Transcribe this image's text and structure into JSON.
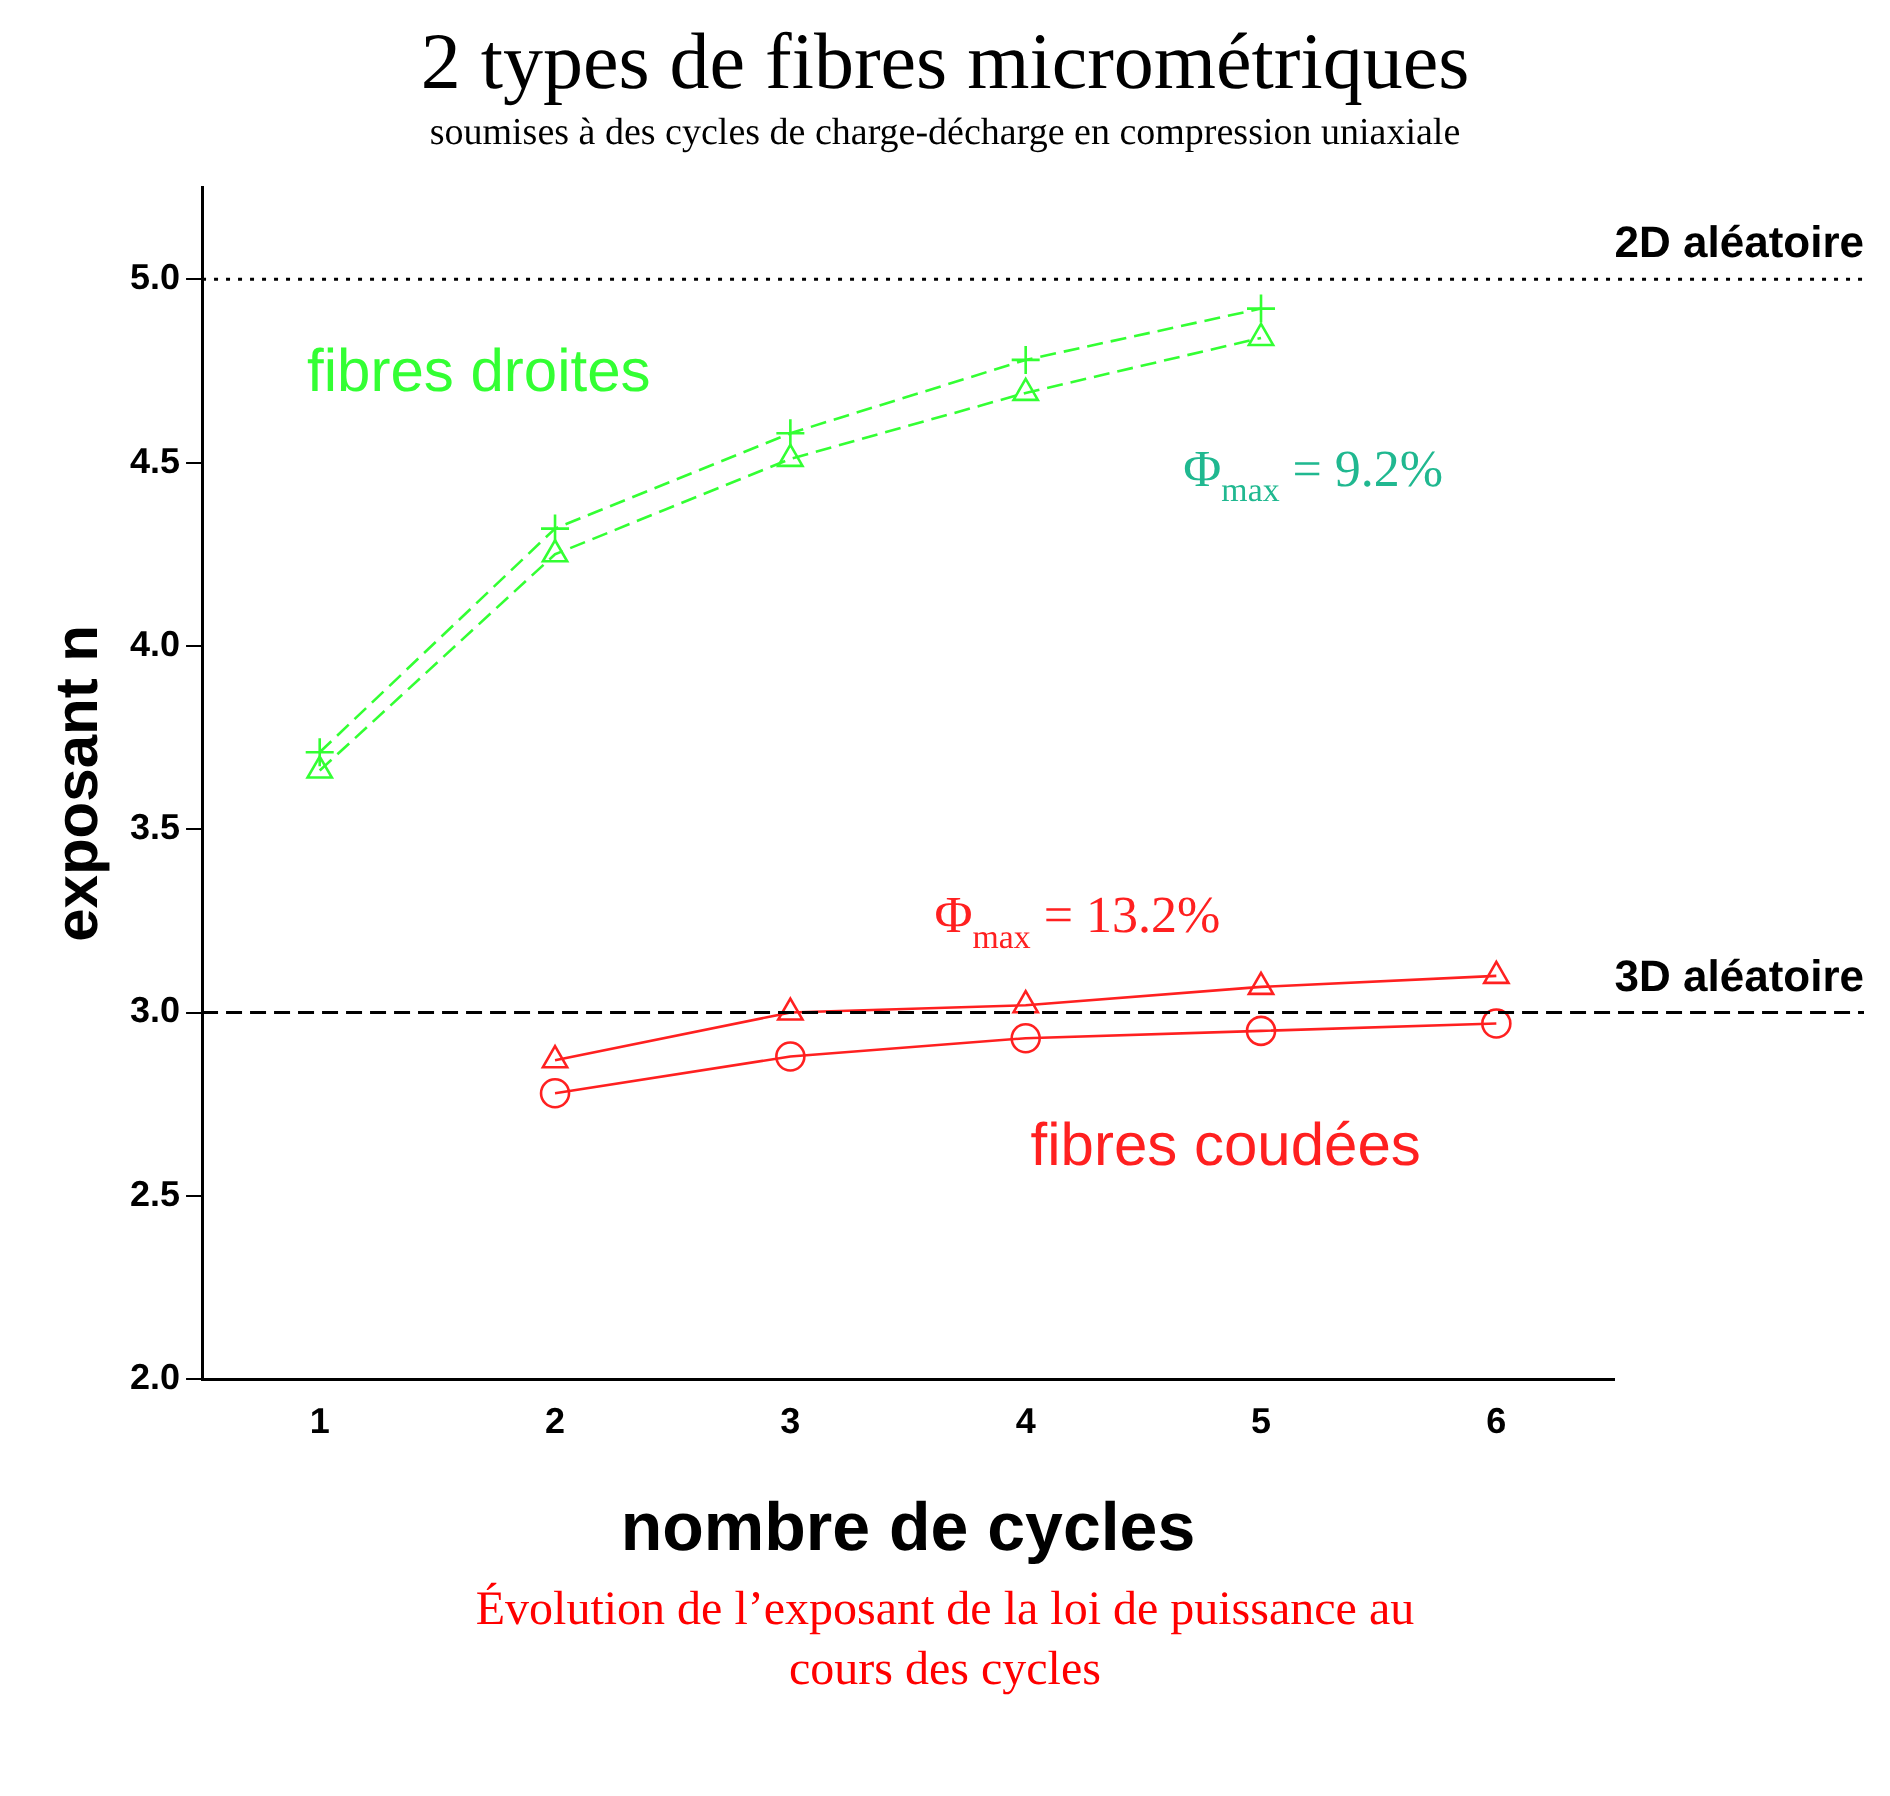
{
  "chart_data": {
    "type": "line",
    "title": "2 types de fibres micrométriques",
    "subtitle": "soumises à des cycles de charge-décharge en compression uniaxiale",
    "xlabel": "nombre de cycles",
    "ylabel": "exposant n",
    "x": [
      1,
      2,
      3,
      4,
      5,
      6
    ],
    "xlim": [
      0.5,
      6.5
    ],
    "xticks": [
      1,
      2,
      3,
      4,
      5,
      6
    ],
    "ylim": [
      2,
      5.25
    ],
    "yticks": [
      {
        "value": 2,
        "label": "2.0"
      },
      {
        "value": 2.5,
        "label": "2.5"
      },
      {
        "value": 3,
        "label": "3.0"
      },
      {
        "value": 3.5,
        "label": "3.5"
      },
      {
        "value": 4,
        "label": "4.0"
      },
      {
        "value": 4.5,
        "label": "4.5"
      },
      {
        "value": 5,
        "label": "5.0"
      }
    ],
    "series": [
      {
        "color": "#33ff33",
        "marker": "cross",
        "line_style": "dashed",
        "values": [
          3.71,
          4.32,
          4.58,
          4.78,
          4.92,
          null
        ]
      },
      {
        "color": "#33ff33",
        "marker": "triangle",
        "line_style": "dashed",
        "values": [
          3.66,
          4.25,
          4.51,
          4.69,
          4.84,
          null
        ]
      },
      {
        "color": "#ff2020",
        "marker": "triangle",
        "line_style": "solid",
        "values": [
          null,
          2.87,
          3.0,
          3.02,
          3.07,
          3.1
        ]
      },
      {
        "color": "#ff2020",
        "marker": "circle",
        "line_style": "solid",
        "values": [
          null,
          2.78,
          2.88,
          2.93,
          2.95,
          2.97
        ]
      }
    ],
    "ref_lines": [
      {
        "axis": "y",
        "value": 5,
        "label": "2D aléatoire",
        "line_style": "dotted",
        "color": "#000000"
      },
      {
        "axis": "y",
        "value": 3,
        "label": "3D aléatoire",
        "line_style": "dashed",
        "color": "#000000"
      }
    ],
    "annotations": [
      "fibres droites",
      "Φ$_{max}$ = 9.2%",
      "Φ$_{max}$ = 13.2%",
      "fibres coudées",
      "Évolution de l’exposant de la loi de puissance au cours des cycles"
    ],
    "grid": false,
    "legend": false
  }
}
